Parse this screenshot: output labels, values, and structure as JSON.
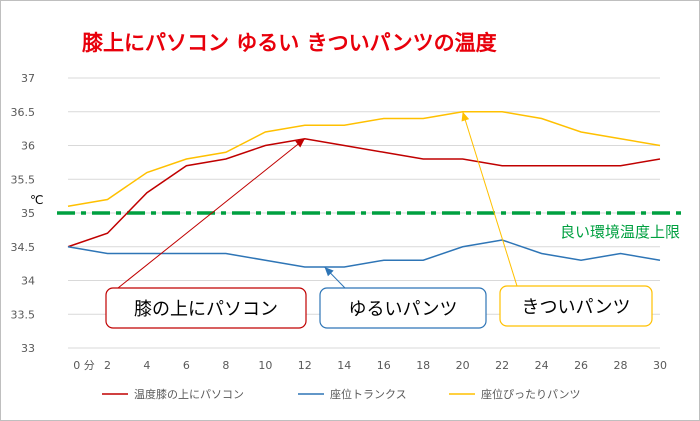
{
  "chart_data": {
    "type": "line",
    "title": "膝上にパソコン ゆるい きついパンツの温度",
    "ylabel": "℃",
    "x_axis_first_label": "0 分",
    "x": [
      0,
      2,
      4,
      6,
      8,
      10,
      12,
      14,
      16,
      18,
      20,
      22,
      24,
      26,
      28,
      30
    ],
    "ylim": [
      33,
      37
    ],
    "yticks": [
      33,
      33.5,
      34,
      34.5,
      35,
      35.5,
      36,
      36.5,
      37
    ],
    "grid": true,
    "legend_position": "bottom",
    "series": [
      {
        "name": "温度膝の上にパソコン",
        "color": "#c00000",
        "values": [
          34.5,
          34.7,
          35.3,
          35.7,
          35.8,
          36.0,
          36.1,
          36.0,
          35.9,
          35.8,
          35.8,
          35.7,
          35.7,
          35.7,
          35.7,
          35.8
        ]
      },
      {
        "name": "座位トランクス",
        "color": "#2e75b6",
        "values": [
          34.5,
          34.4,
          34.4,
          34.4,
          34.4,
          34.3,
          34.2,
          34.2,
          34.3,
          34.3,
          34.5,
          34.6,
          34.4,
          34.3,
          34.4,
          34.3
        ]
      },
      {
        "name": "座位ぴったりパンツ",
        "color": "#ffc000",
        "values": [
          35.1,
          35.2,
          35.6,
          35.8,
          35.9,
          36.2,
          36.3,
          36.3,
          36.4,
          36.4,
          36.5,
          36.5,
          36.4,
          36.2,
          36.1,
          36.0
        ]
      }
    ],
    "reference_line": {
      "label": "良い環境温度上限",
      "value": 35,
      "color": "#00a040"
    },
    "annotations": [
      {
        "label": "膝の上にパソコン",
        "color": "#c00000",
        "target": {
          "x": 12,
          "y": 36.1
        },
        "series": 0
      },
      {
        "label": "ゆるいパンツ",
        "color": "#2e75b6",
        "target": {
          "x": 13,
          "y": 34.2
        },
        "series": 1
      },
      {
        "label": "きついパンツ",
        "color": "#ffc000",
        "target": {
          "x": 20,
          "y": 36.5
        },
        "series": 2
      }
    ]
  }
}
